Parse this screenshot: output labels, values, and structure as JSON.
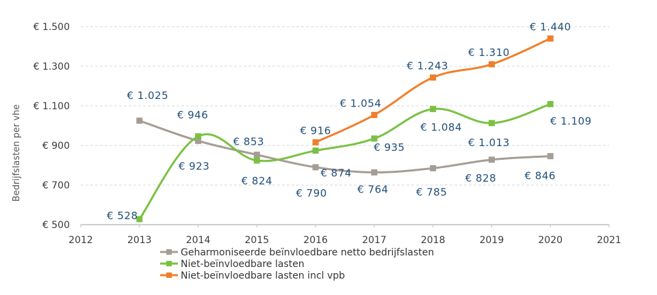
{
  "chart_data": {
    "type": "line",
    "ylabel": "Bedrijfslasten per vhe",
    "xlim": [
      2012,
      2021
    ],
    "ylim": [
      500,
      1500
    ],
    "x_ticks": [
      "2012",
      "2013",
      "2014",
      "2015",
      "2016",
      "2017",
      "2018",
      "2019",
      "2020",
      "2021"
    ],
    "y_ticks": [
      "€ 500",
      "€ 700",
      "€ 900",
      "€ 1.100",
      "€ 1.300",
      "€ 1.500"
    ],
    "grid": true,
    "legend_position": "bottom",
    "series": [
      {
        "name": "Geharmoniseerde beïnvloedbare netto bedrijfslasten",
        "color": "#a59c94",
        "x": [
          2013,
          2014,
          2015,
          2016,
          2017,
          2018,
          2019,
          2020
        ],
        "values": [
          1025,
          923,
          853,
          790,
          764,
          785,
          828,
          846
        ],
        "labels": [
          "€ 1.025",
          "€ 923",
          "€ 853",
          "€ 790",
          "€ 764",
          "€ 785",
          "€ 828",
          "€ 846"
        ]
      },
      {
        "name": "Niet-beïnvloedbare lasten",
        "color": "#7ac143",
        "x": [
          2013,
          2014,
          2015,
          2016,
          2017,
          2018,
          2019,
          2020
        ],
        "values": [
          528,
          946,
          824,
          874,
          935,
          1084,
          1013,
          1109
        ],
        "labels": [
          "€ 528",
          "€ 946",
          "€ 824",
          "€ 874",
          "€ 935",
          "€ 1.084",
          "€ 1.013",
          "€ 1.109"
        ]
      },
      {
        "name": "Niet-beïnvloedbare lasten incl vpb",
        "color": "#f07f2a",
        "x": [
          2016,
          2017,
          2018,
          2019,
          2020
        ],
        "values": [
          916,
          1054,
          1243,
          1310,
          1440
        ],
        "labels": [
          "€ 916",
          "€ 1.054",
          "€ 1.243",
          "€ 1.310",
          "€ 1.440"
        ]
      }
    ]
  }
}
